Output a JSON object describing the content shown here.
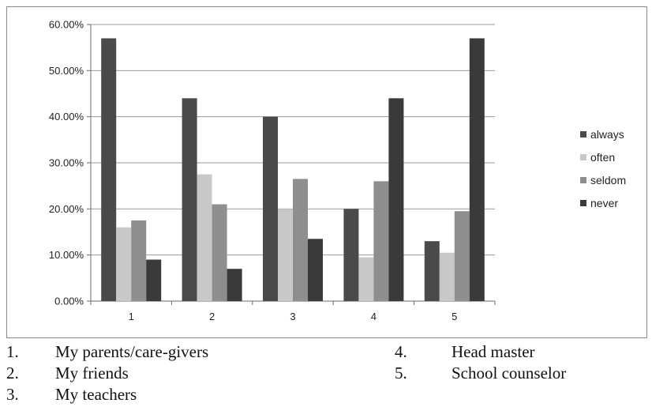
{
  "chart_data": {
    "type": "bar",
    "categories": [
      "1",
      "2",
      "3",
      "4",
      "5"
    ],
    "series": [
      {
        "name": "always",
        "values": [
          57.0,
          44.0,
          40.0,
          20.0,
          13.0
        ],
        "color": "#4a4a4a"
      },
      {
        "name": "often",
        "values": [
          16.0,
          27.5,
          20.0,
          9.5,
          10.5
        ],
        "color": "#c8c8c8"
      },
      {
        "name": "seldom",
        "values": [
          17.5,
          21.0,
          26.5,
          26.0,
          19.5
        ],
        "color": "#8e8e8e"
      },
      {
        "name": "never",
        "values": [
          9.0,
          7.0,
          13.5,
          44.0,
          57.0
        ],
        "color": "#3a3a3a"
      }
    ],
    "y_ticks": [
      "0.00%",
      "10.00%",
      "20.00%",
      "30.00%",
      "40.00%",
      "50.00%",
      "60.00%"
    ],
    "ylim": [
      0,
      60
    ],
    "grid": true,
    "legend_position": "right"
  },
  "key": [
    {
      "num": "1.",
      "label": "My parents/care-givers"
    },
    {
      "num": "2.",
      "label": "My friends"
    },
    {
      "num": "3.",
      "label": "My teachers"
    },
    {
      "num": "4.",
      "label": "Head master"
    },
    {
      "num": "5.",
      "label": "School counselor"
    }
  ]
}
